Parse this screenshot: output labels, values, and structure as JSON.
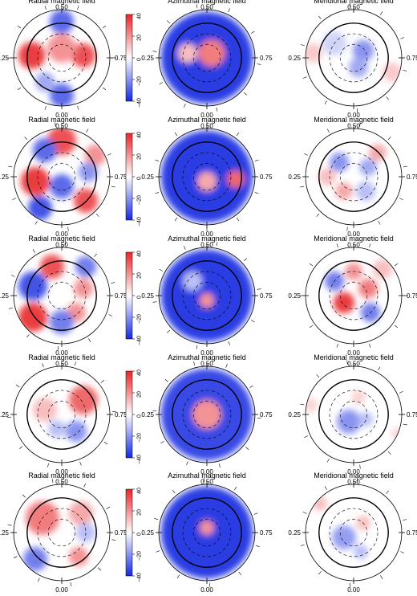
{
  "panel_titles": [
    "Radial magnetic field",
    "Azimuthal magnetic field",
    "Meridional magnetic field"
  ],
  "phase_labels": {
    "top": "0.50",
    "bottom": "0.00",
    "left": "0.25",
    "right": "0.75"
  },
  "colorbar": {
    "ticks": [
      "40",
      "20",
      "0",
      "−20",
      "−40"
    ],
    "min": -40,
    "max": 40
  },
  "colors": {
    "positive": "#e8262a",
    "negative": "#1428e0",
    "neutral": "#ffffff"
  },
  "rows": 5,
  "blobs": [
    [
      [
        [
          -0.62,
          0.05,
          0.28,
          0.9
        ],
        [
          0.45,
          0.05,
          0.25,
          0.8
        ],
        [
          0,
          0.2,
          0.3,
          0.5
        ],
        [
          0,
          0.75,
          0.25,
          -0.7
        ],
        [
          0,
          -0.78,
          0.25,
          -0.7
        ],
        [
          -0.35,
          -0.5,
          0.2,
          -0.4
        ]
      ],
      [
        [
          0,
          0,
          0.95,
          -0.9
        ],
        [
          0.1,
          0.1,
          0.28,
          0.6
        ],
        [
          -0.4,
          0.1,
          0.2,
          0.3
        ]
      ],
      [
        [
          0.2,
          0.15,
          0.22,
          -0.5
        ],
        [
          0.1,
          -0.2,
          0.2,
          -0.4
        ],
        [
          -0.4,
          0.3,
          0.25,
          -0.2
        ],
        [
          -0.85,
          0.1,
          0.2,
          0.25
        ],
        [
          0.8,
          -0.3,
          0.2,
          0.25
        ]
      ]
    ],
    [
      [
        [
          -0.55,
          -0.1,
          0.3,
          0.9
        ],
        [
          0.5,
          -0.5,
          0.25,
          0.8
        ],
        [
          0,
          0.75,
          0.3,
          0.8
        ],
        [
          0.7,
          0.45,
          0.22,
          0.5
        ],
        [
          0,
          -0.2,
          0.25,
          -0.7
        ],
        [
          -0.35,
          0.55,
          0.25,
          -0.7
        ],
        [
          0.55,
          0.1,
          0.2,
          -0.5
        ],
        [
          -0.45,
          -0.65,
          0.25,
          -0.8
        ]
      ],
      [
        [
          0,
          0,
          0.95,
          -0.9
        ],
        [
          0.6,
          -0.05,
          0.18,
          0.7
        ],
        [
          0,
          -0.1,
          0.2,
          0.4
        ]
      ],
      [
        [
          -0.3,
          0.3,
          0.2,
          -0.5
        ],
        [
          0.3,
          0.2,
          0.18,
          -0.4
        ],
        [
          0.25,
          -0.3,
          0.2,
          -0.3
        ],
        [
          -0.2,
          -0.3,
          0.18,
          0.4
        ],
        [
          0.5,
          0.5,
          0.18,
          0.4
        ],
        [
          -0.55,
          0,
          0.18,
          0.3
        ]
      ]
    ],
    [
      [
        [
          -0.6,
          -0.45,
          0.3,
          0.9
        ],
        [
          -0.2,
          0.6,
          0.25,
          0.8
        ],
        [
          0.45,
          0.15,
          0.2,
          0.5
        ],
        [
          0.3,
          -0.35,
          0.2,
          0.5
        ],
        [
          -0.6,
          0.2,
          0.3,
          -0.8
        ],
        [
          0.5,
          0.6,
          0.22,
          -0.6
        ],
        [
          0,
          -0.55,
          0.25,
          -0.6
        ]
      ],
      [
        [
          0,
          0,
          0.95,
          -0.9
        ],
        [
          0,
          -0.1,
          0.15,
          0.5
        ],
        [
          -0.3,
          0.3,
          0.2,
          -0.3
        ]
      ],
      [
        [
          -0.2,
          -0.15,
          0.22,
          0.9
        ],
        [
          0.3,
          0.15,
          0.2,
          0.6
        ],
        [
          0,
          0.5,
          0.18,
          0.5
        ],
        [
          -0.4,
          0.3,
          0.2,
          -0.6
        ],
        [
          0.35,
          -0.35,
          0.2,
          -0.6
        ],
        [
          0.6,
          0.55,
          0.2,
          0.3
        ]
      ]
    ],
    [
      [
        [
          0.45,
          0.3,
          0.3,
          0.7
        ],
        [
          -0.35,
          0.1,
          0.25,
          0.3
        ],
        [
          0.3,
          -0.35,
          0.22,
          -0.5
        ],
        [
          -0.1,
          -0.3,
          0.18,
          -0.3
        ]
      ],
      [
        [
          0,
          0,
          0.95,
          -0.85
        ],
        [
          0,
          0,
          0.3,
          0.5
        ]
      ],
      [
        [
          -0.1,
          -0.15,
          0.25,
          -0.5
        ],
        [
          0.25,
          -0.1,
          0.15,
          -0.3
        ],
        [
          0.1,
          0.35,
          0.15,
          0.2
        ],
        [
          -0.9,
          0.2,
          0.15,
          0.2
        ],
        [
          0.9,
          -0.4,
          0.12,
          0.2
        ]
      ]
    ],
    [
      [
        [
          -0.4,
          0.3,
          0.35,
          0.6
        ],
        [
          0.4,
          0.4,
          0.25,
          0.4
        ],
        [
          -0.55,
          -0.55,
          0.25,
          -0.6
        ],
        [
          0.35,
          -0.5,
          0.2,
          0.5
        ],
        [
          0.5,
          0,
          0.2,
          -0.3
        ]
      ],
      [
        [
          0,
          0,
          0.95,
          -0.9
        ],
        [
          0,
          0.1,
          0.15,
          0.5
        ]
      ],
      [
        [
          -0.2,
          -0.1,
          0.25,
          -0.45
        ],
        [
          0.2,
          0.2,
          0.15,
          0.3
        ],
        [
          0.15,
          -0.4,
          0.15,
          -0.3
        ],
        [
          -0.7,
          0.6,
          0.15,
          0.3
        ]
      ]
    ]
  ]
}
